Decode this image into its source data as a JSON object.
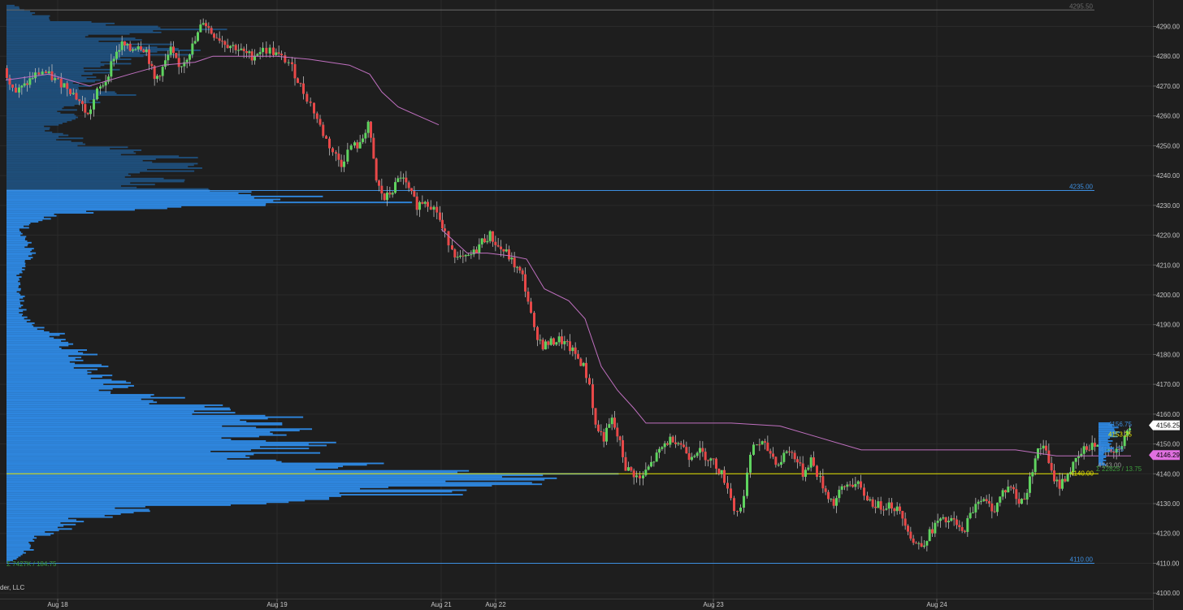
{
  "app": {
    "copyright": "der, LLC"
  },
  "chart_data": {
    "type": "candlestick",
    "price_axis": {
      "range": [
        4098.5,
        4297
      ],
      "ticks": [
        4100,
        4110,
        4120,
        4130,
        4140,
        4150,
        4160,
        4170,
        4180,
        4190,
        4200,
        4210,
        4220,
        4230,
        4240,
        4250,
        4260,
        4270,
        4280,
        4290
      ],
      "tick_labels": [
        "4100.00",
        "4110.00",
        "4120.00",
        "4130.00",
        "4140.00",
        "4150.00",
        "4160.00",
        "4170.00",
        "4180.00",
        "4190.00",
        "4200.00",
        "4210.00",
        "4220.00",
        "4230.00",
        "4240.00",
        "4250.00",
        "4260.00",
        "4270.00",
        "4280.00",
        "4290.00"
      ]
    },
    "date_axis": [
      "Aug 18",
      "Aug 19",
      "Aug 21",
      "Aug 22",
      "Aug 23",
      "Aug 24"
    ],
    "horizontal_levels": [
      {
        "price": 4295.5,
        "label": "4295.50",
        "color": "#6a6a6a"
      },
      {
        "price": 4235.0,
        "label": "4235.00",
        "color": "#3d8fe0"
      },
      {
        "price": 4110.0,
        "label": "4110.00",
        "color": "#3d8fe0"
      },
      {
        "price": 4140.0,
        "label": "4140.00",
        "color": "#e6e600"
      }
    ],
    "price_markers": [
      {
        "price": 4156.25,
        "label": "4156.25",
        "bg": "#ffffff",
        "fg": "#000000"
      },
      {
        "price": 4146.29,
        "label": "4146.29",
        "bg": "#e070e0",
        "fg": "#000000"
      }
    ],
    "session_labels": [
      {
        "price": 4156.75,
        "label": "4156.75",
        "color": "#3d8fe0"
      },
      {
        "price": 4153.25,
        "label": "4153.25",
        "color": "#e6e600"
      },
      {
        "price": 4148.25,
        "label": "4148.25",
        "color": "#3d8fe0"
      },
      {
        "price": 4143.0,
        "label": "4143.00",
        "color": "#9a9a9a"
      }
    ],
    "volume_profile_stats": {
      "main": "Σ 7427K / 184.75",
      "session": "Σ 22825 / 13.75"
    },
    "candles_ohlc_count": 203,
    "colors": {
      "up": "#5fd35f",
      "down": "#e84848",
      "vwap": "#c070c0",
      "profile_dark": "#1f4e7a",
      "profile_light": "#2e86de"
    }
  }
}
